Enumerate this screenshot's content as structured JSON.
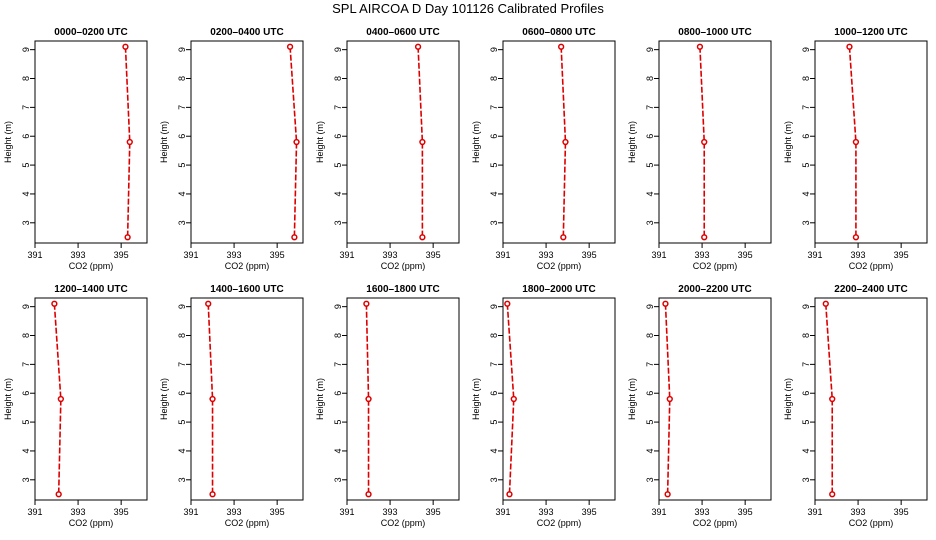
{
  "chart_data": {
    "type": "line",
    "title": "SPL AIRCOA D  Day 101126  Calibrated Profiles",
    "xlabel": "CO2 (ppm)",
    "ylabel": "Height (m)",
    "xlim": [
      391,
      396.2
    ],
    "ylim": [
      2.3,
      9.3
    ],
    "xticks": [
      391,
      393,
      395
    ],
    "yticks": [
      3,
      4,
      5,
      6,
      7,
      8,
      9
    ],
    "grid": false,
    "line_color": "#dd0000",
    "panels": [
      {
        "title": "0000–0200 UTC",
        "heights": [
          9.1,
          5.8,
          2.5
        ],
        "co2": [
          395.2,
          395.4,
          395.3
        ]
      },
      {
        "title": "0200–0400 UTC",
        "heights": [
          9.1,
          5.8,
          2.5
        ],
        "co2": [
          395.6,
          395.9,
          395.8
        ]
      },
      {
        "title": "0400–0600 UTC",
        "heights": [
          9.1,
          5.8,
          2.5
        ],
        "co2": [
          394.3,
          394.5,
          394.5
        ]
      },
      {
        "title": "0600–0800 UTC",
        "heights": [
          9.1,
          5.8,
          2.5
        ],
        "co2": [
          393.7,
          393.9,
          393.8
        ]
      },
      {
        "title": "0800–1000 UTC",
        "heights": [
          9.1,
          5.8,
          2.5
        ],
        "co2": [
          392.9,
          393.1,
          393.1
        ]
      },
      {
        "title": "1000–1200 UTC",
        "heights": [
          9.1,
          5.8,
          2.5
        ],
        "co2": [
          392.6,
          392.9,
          392.9
        ]
      },
      {
        "title": "1200–1400 UTC",
        "heights": [
          9.1,
          5.8,
          2.5
        ],
        "co2": [
          391.9,
          392.2,
          392.1
        ]
      },
      {
        "title": "1400–1600 UTC",
        "heights": [
          9.1,
          5.8,
          2.5
        ],
        "co2": [
          391.8,
          392.0,
          392.0
        ]
      },
      {
        "title": "1600–1800 UTC",
        "heights": [
          9.1,
          5.8,
          2.5
        ],
        "co2": [
          391.9,
          392.0,
          392.0
        ]
      },
      {
        "title": "1800–2000 UTC",
        "heights": [
          9.1,
          5.8,
          2.5
        ],
        "co2": [
          391.2,
          391.5,
          391.3
        ]
      },
      {
        "title": "2000–2200 UTC",
        "heights": [
          9.1,
          5.8,
          2.5
        ],
        "co2": [
          391.3,
          391.5,
          391.4
        ]
      },
      {
        "title": "2200–2400 UTC",
        "heights": [
          9.1,
          5.8,
          2.5
        ],
        "co2": [
          391.5,
          391.8,
          391.8
        ]
      }
    ]
  }
}
